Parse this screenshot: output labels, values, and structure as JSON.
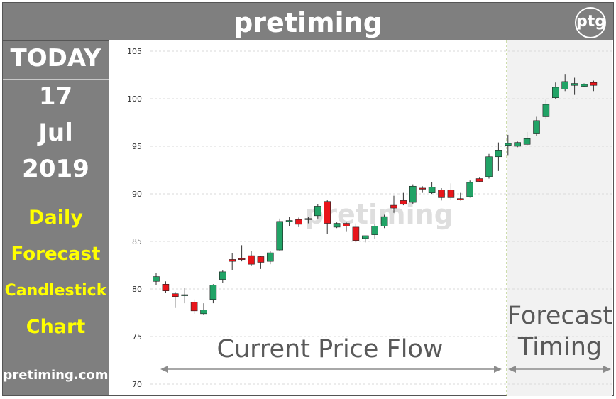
{
  "header": {
    "title": "pretiming",
    "logo_text": "ptg"
  },
  "sidebar": {
    "today_label": "TODAY",
    "day": "17",
    "month": "Jul",
    "year": "2019",
    "lines": [
      "Daily",
      "Forecast",
      "Candlestick",
      "Chart"
    ],
    "website": "pretiming.com"
  },
  "chart_data": {
    "type": "candlestick",
    "ylim": [
      70,
      105
    ],
    "yticks": [
      "70",
      "75",
      "80",
      "85",
      "90",
      "95",
      "100",
      "105"
    ],
    "grid": true,
    "watermark": "pretiming",
    "region_labels": {
      "current": "Current Price Flow",
      "forecast_line1": "Forecast",
      "forecast_line2": "Timing"
    },
    "colors": {
      "up": "#21a366",
      "down": "#e8151b",
      "wick": "#333333",
      "forecast_bg": "#f2f2f2",
      "grid": "#d9d9d9",
      "arrow": "#8c8c8c",
      "label": "#595959"
    },
    "candles": [
      {
        "o": 80.8,
        "h": 81.7,
        "l": 80.4,
        "c": 81.3
      },
      {
        "o": 80.5,
        "h": 80.8,
        "l": 79.6,
        "c": 79.8
      },
      {
        "o": 79.5,
        "h": 79.7,
        "l": 78.0,
        "c": 79.2
      },
      {
        "o": 79.3,
        "h": 80.1,
        "l": 78.5,
        "c": 79.4
      },
      {
        "o": 78.6,
        "h": 78.9,
        "l": 77.4,
        "c": 77.7
      },
      {
        "o": 77.4,
        "h": 78.5,
        "l": 77.3,
        "c": 77.8
      },
      {
        "o": 78.9,
        "h": 80.5,
        "l": 78.5,
        "c": 80.4
      },
      {
        "o": 81.0,
        "h": 82.0,
        "l": 80.6,
        "c": 81.8
      },
      {
        "o": 83.1,
        "h": 83.8,
        "l": 82.0,
        "c": 82.9
      },
      {
        "o": 83.2,
        "h": 84.6,
        "l": 82.9,
        "c": 83.1
      },
      {
        "o": 83.5,
        "h": 84.0,
        "l": 82.4,
        "c": 82.6
      },
      {
        "o": 83.4,
        "h": 83.5,
        "l": 82.1,
        "c": 82.8
      },
      {
        "o": 82.9,
        "h": 84.0,
        "l": 82.6,
        "c": 83.8
      },
      {
        "o": 84.1,
        "h": 87.4,
        "l": 84.0,
        "c": 87.1
      },
      {
        "o": 87.1,
        "h": 87.6,
        "l": 86.6,
        "c": 87.2
      },
      {
        "o": 87.3,
        "h": 87.5,
        "l": 86.5,
        "c": 86.8
      },
      {
        "o": 87.3,
        "h": 87.6,
        "l": 86.9,
        "c": 87.4
      },
      {
        "o": 87.7,
        "h": 88.9,
        "l": 87.4,
        "c": 88.7
      },
      {
        "o": 89.2,
        "h": 89.4,
        "l": 85.8,
        "c": 86.9
      },
      {
        "o": 86.5,
        "h": 87.0,
        "l": 86.4,
        "c": 86.9
      },
      {
        "o": 86.9,
        "h": 87.0,
        "l": 86.0,
        "c": 86.6
      },
      {
        "o": 86.5,
        "h": 86.9,
        "l": 84.9,
        "c": 85.1
      },
      {
        "o": 85.3,
        "h": 85.6,
        "l": 84.9,
        "c": 85.6
      },
      {
        "o": 85.7,
        "h": 86.8,
        "l": 85.3,
        "c": 86.6
      },
      {
        "o": 86.6,
        "h": 87.8,
        "l": 86.4,
        "c": 87.6
      },
      {
        "o": 88.8,
        "h": 89.8,
        "l": 88.0,
        "c": 88.5
      },
      {
        "o": 89.3,
        "h": 90.1,
        "l": 88.8,
        "c": 88.9
      },
      {
        "o": 89.1,
        "h": 91.0,
        "l": 88.9,
        "c": 90.8
      },
      {
        "o": 90.6,
        "h": 90.8,
        "l": 90.1,
        "c": 90.5
      },
      {
        "o": 90.1,
        "h": 91.2,
        "l": 90.0,
        "c": 90.7
      },
      {
        "o": 90.4,
        "h": 90.6,
        "l": 89.3,
        "c": 89.6
      },
      {
        "o": 90.4,
        "h": 91.1,
        "l": 89.4,
        "c": 89.6
      },
      {
        "o": 89.5,
        "h": 90.1,
        "l": 89.3,
        "c": 89.4
      },
      {
        "o": 89.7,
        "h": 91.4,
        "l": 89.6,
        "c": 91.2
      },
      {
        "o": 91.6,
        "h": 91.7,
        "l": 91.2,
        "c": 91.3
      },
      {
        "o": 91.8,
        "h": 94.2,
        "l": 91.6,
        "c": 93.9
      },
      {
        "o": 93.9,
        "h": 95.4,
        "l": 92.4,
        "c": 94.6
      }
    ],
    "forecast_candles": [
      {
        "o": 95.1,
        "h": 96.2,
        "l": 94.0,
        "c": 95.3
      },
      {
        "o": 95.0,
        "h": 95.5,
        "l": 94.9,
        "c": 95.4
      },
      {
        "o": 95.2,
        "h": 96.5,
        "l": 95.1,
        "c": 95.8
      },
      {
        "o": 96.3,
        "h": 98.1,
        "l": 96.1,
        "c": 97.7
      },
      {
        "o": 98.1,
        "h": 99.9,
        "l": 97.9,
        "c": 99.4
      },
      {
        "o": 100.1,
        "h": 101.7,
        "l": 100.0,
        "c": 101.2
      },
      {
        "o": 101.0,
        "h": 102.6,
        "l": 100.8,
        "c": 101.8
      },
      {
        "o": 101.4,
        "h": 102.2,
        "l": 100.4,
        "c": 101.6
      },
      {
        "o": 101.3,
        "h": 101.6,
        "l": 101.2,
        "c": 101.5
      },
      {
        "o": 101.7,
        "h": 101.9,
        "l": 100.8,
        "c": 101.4
      }
    ]
  }
}
